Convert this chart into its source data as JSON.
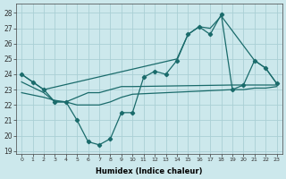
{
  "xlabel": "Humidex (Indice chaleur)",
  "bg_color": "#cce8ec",
  "grid_color": "#aacfd5",
  "line_color": "#1a6b6b",
  "xlim": [
    -0.5,
    23.5
  ],
  "ylim": [
    18.8,
    28.6
  ],
  "yticks": [
    19,
    20,
    21,
    22,
    23,
    24,
    25,
    26,
    27,
    28
  ],
  "xticks": [
    0,
    1,
    2,
    3,
    4,
    5,
    6,
    7,
    8,
    9,
    10,
    11,
    12,
    13,
    14,
    15,
    16,
    17,
    18,
    19,
    20,
    21,
    22,
    23
  ],
  "line1_x": [
    0,
    1,
    2,
    3,
    4,
    5,
    6,
    7,
    8,
    9,
    10,
    11,
    12,
    13,
    14,
    15,
    16,
    17,
    18,
    19,
    20,
    21,
    22,
    23
  ],
  "line1_y": [
    24.0,
    23.5,
    23.0,
    22.2,
    22.2,
    21.0,
    19.6,
    19.4,
    19.8,
    21.5,
    21.5,
    23.8,
    24.2,
    24.0,
    24.9,
    26.6,
    27.1,
    26.6,
    27.9,
    23.0,
    23.3,
    24.9,
    24.4,
    23.4
  ],
  "line2_x": [
    0,
    2,
    14,
    15,
    16,
    17,
    18,
    21,
    22,
    23
  ],
  "line2_y": [
    24.0,
    23.0,
    25.0,
    26.6,
    27.1,
    27.0,
    27.8,
    24.9,
    24.4,
    23.4
  ],
  "line3_x": [
    0,
    2,
    3,
    4,
    5,
    6,
    7,
    8,
    9,
    10,
    19,
    20,
    21,
    22,
    23
  ],
  "line3_y": [
    23.5,
    22.8,
    22.2,
    22.2,
    22.5,
    22.8,
    22.8,
    23.0,
    23.2,
    23.2,
    23.3,
    23.3,
    23.3,
    23.3,
    23.3
  ],
  "line4_x": [
    0,
    2,
    3,
    4,
    5,
    6,
    7,
    8,
    9,
    10,
    19,
    20,
    21,
    22,
    23
  ],
  "line4_y": [
    22.8,
    22.5,
    22.3,
    22.2,
    22.0,
    22.0,
    22.0,
    22.2,
    22.5,
    22.7,
    23.0,
    23.0,
    23.1,
    23.1,
    23.2
  ]
}
